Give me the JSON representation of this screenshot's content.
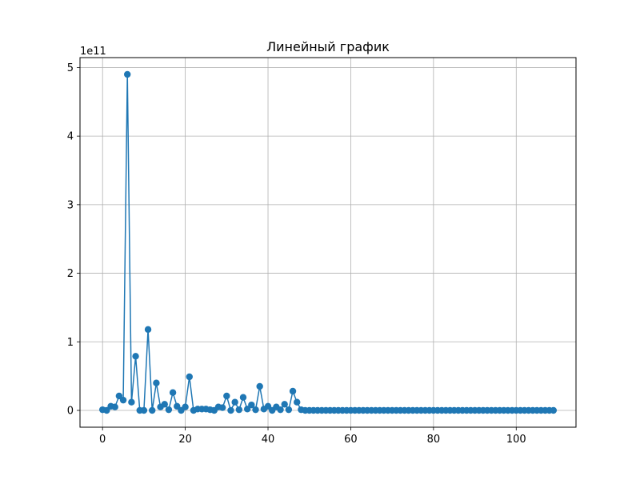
{
  "chart_data": {
    "type": "line",
    "title": "Линейный график",
    "xlabel": "",
    "ylabel": "",
    "y_offset_label": "1e11",
    "grid": true,
    "series_color": "#1f77b4",
    "marker": "circle",
    "xlim": [
      -5.45,
      114.45
    ],
    "ylim": [
      -0.245,
      5.145
    ],
    "x_ticks": [
      0,
      20,
      40,
      60,
      80,
      100
    ],
    "y_ticks": [
      0,
      1,
      2,
      3,
      4,
      5
    ],
    "x": [
      0,
      1,
      2,
      3,
      4,
      5,
      6,
      7,
      8,
      9,
      10,
      11,
      12,
      13,
      14,
      15,
      16,
      17,
      18,
      19,
      20,
      21,
      22,
      23,
      24,
      25,
      26,
      27,
      28,
      29,
      30,
      31,
      32,
      33,
      34,
      35,
      36,
      37,
      38,
      39,
      40,
      41,
      42,
      43,
      44,
      45,
      46,
      47,
      48,
      49,
      50,
      51,
      52,
      53,
      54,
      55,
      56,
      57,
      58,
      59,
      60,
      61,
      62,
      63,
      64,
      65,
      66,
      67,
      68,
      69,
      70,
      71,
      72,
      73,
      74,
      75,
      76,
      77,
      78,
      79,
      80,
      81,
      82,
      83,
      84,
      85,
      86,
      87,
      88,
      89,
      90,
      91,
      92,
      93,
      94,
      95,
      96,
      97,
      98,
      99,
      100,
      101,
      102,
      103,
      104,
      105,
      106,
      107,
      108,
      109
    ],
    "values": [
      0.01,
      0.0,
      0.06,
      0.05,
      0.21,
      0.15,
      4.9,
      0.12,
      0.79,
      0.0,
      0.0,
      1.18,
      0.0,
      0.4,
      0.05,
      0.09,
      0.01,
      0.26,
      0.06,
      0.0,
      0.05,
      0.49,
      0.0,
      0.02,
      0.02,
      0.02,
      0.01,
      0.0,
      0.05,
      0.04,
      0.21,
      0.0,
      0.12,
      0.01,
      0.19,
      0.02,
      0.08,
      0.01,
      0.35,
      0.02,
      0.06,
      0.0,
      0.05,
      0.01,
      0.09,
      0.01,
      0.28,
      0.12,
      0.01,
      0,
      0,
      0,
      0,
      0,
      0,
      0,
      0,
      0,
      0,
      0,
      0,
      0,
      0,
      0,
      0,
      0,
      0,
      0,
      0,
      0,
      0,
      0,
      0,
      0,
      0,
      0,
      0,
      0,
      0,
      0,
      0,
      0,
      0,
      0,
      0,
      0,
      0,
      0,
      0,
      0,
      0,
      0,
      0,
      0,
      0,
      0,
      0,
      0,
      0,
      0,
      0,
      0,
      0,
      0,
      0,
      0,
      0,
      0,
      0,
      0
    ]
  }
}
